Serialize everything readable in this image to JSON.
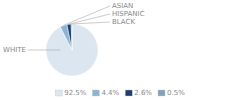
{
  "chart_data": {
    "type": "pie",
    "categories": [
      "WHITE",
      "ASIAN",
      "HISPANIC",
      "BLACK"
    ],
    "values": [
      92.5,
      4.4,
      2.6,
      0.5
    ],
    "value_labels": [
      "92.5%",
      "4.4%",
      "2.6%",
      "0.5%"
    ],
    "colors": [
      "#dce6f0",
      "#8cb4d2",
      "#1f3d6e",
      "#7aa5c0"
    ],
    "legend": "bottom"
  }
}
